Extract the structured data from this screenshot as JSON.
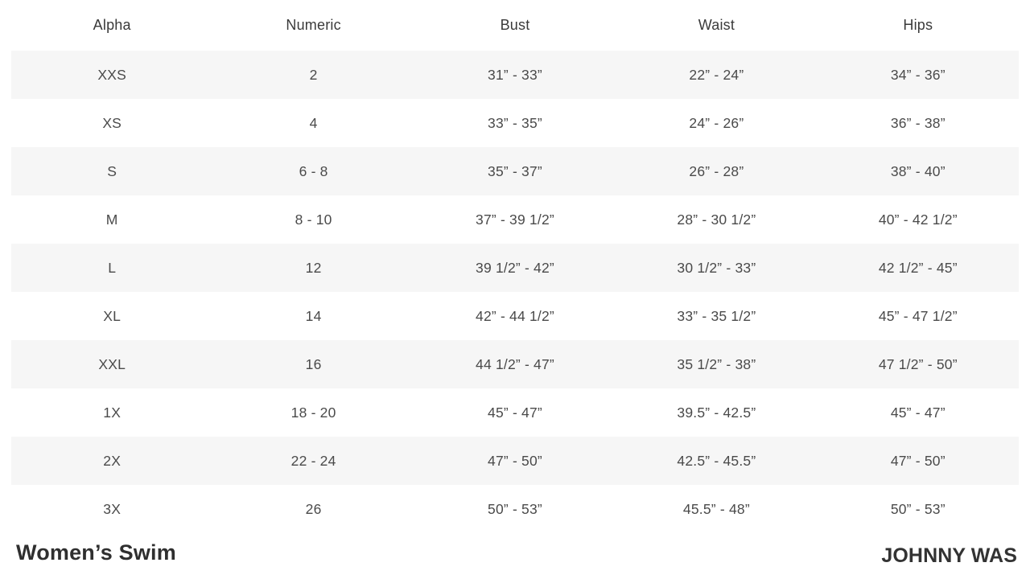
{
  "table": {
    "columns": [
      "Alpha",
      "Numeric",
      "Bust",
      "Waist",
      "Hips"
    ],
    "rows": [
      [
        "XXS",
        "2",
        "31” - 33”",
        "22” - 24”",
        "34” - 36”"
      ],
      [
        "XS",
        "4",
        "33” - 35”",
        "24” - 26”",
        "36” - 38”"
      ],
      [
        "S",
        "6 - 8",
        "35” - 37”",
        "26” - 28”",
        "38” - 40”"
      ],
      [
        "M",
        "8 - 10",
        "37” - 39 1/2”",
        "28” - 30 1/2”",
        "40” - 42 1/2”"
      ],
      [
        "L",
        "12",
        "39 1/2” - 42”",
        "30 1/2” - 33”",
        "42 1/2” - 45”"
      ],
      [
        "XL",
        "14",
        "42” - 44 1/2”",
        "33” - 35 1/2”",
        "45” - 47 1/2”"
      ],
      [
        "XXL",
        "16",
        "44 1/2” - 47”",
        "35 1/2” - 38”",
        "47 1/2” - 50”"
      ],
      [
        "1X",
        "18 - 20",
        "45” - 47”",
        "39.5” - 42.5”",
        "45” - 47”"
      ],
      [
        "2X",
        "22 - 24",
        "47” - 50”",
        "42.5” - 45.5”",
        "47” - 50”"
      ],
      [
        "3X",
        "26",
        "50” - 53”",
        "45.5” - 48”",
        "50” - 53”"
      ]
    ]
  },
  "footer": {
    "category_label": "Women’s Swim",
    "brand": "JOHNNY WAS"
  },
  "colors": {
    "stripe": "#f6f6f6",
    "header_text": "#3a3a3a",
    "cell_text": "#4a4a4a"
  }
}
